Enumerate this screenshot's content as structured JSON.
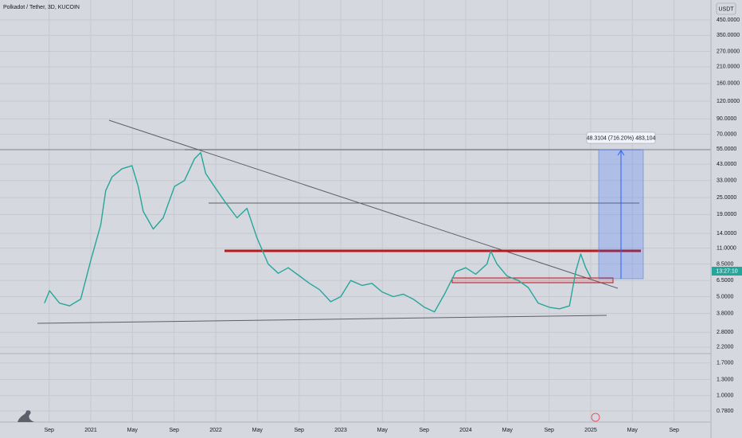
{
  "chart_data": {
    "type": "line",
    "title": "Polkadot / Tether, 3D, KUCOIN",
    "currency": "USDT",
    "countdown": "13:27:10",
    "measure_label": "48.3104 (716.20%) 483,104",
    "log_scale": true,
    "grid": true,
    "color": "#26a69a",
    "xlim": [
      2020.274,
      2025.962
    ],
    "xticks": [
      {
        "value": 2020.667,
        "label": "Sep"
      },
      {
        "value": 2021,
        "label": "2021"
      },
      {
        "value": 2021.333,
        "label": "May"
      },
      {
        "value": 2021.667,
        "label": "Sep"
      },
      {
        "value": 2022,
        "label": "2022"
      },
      {
        "value": 2022.333,
        "label": "May"
      },
      {
        "value": 2022.667,
        "label": "Sep"
      },
      {
        "value": 2023,
        "label": "2023"
      },
      {
        "value": 2023.333,
        "label": "May"
      },
      {
        "value": 2023.667,
        "label": "Sep"
      },
      {
        "value": 2024,
        "label": "2024"
      },
      {
        "value": 2024.333,
        "label": "May"
      },
      {
        "value": 2024.667,
        "label": "Sep"
      },
      {
        "value": 2025,
        "label": "2025"
      },
      {
        "value": 2025.333,
        "label": "May"
      },
      {
        "value": 2025.667,
        "label": "Sep"
      }
    ],
    "ylim": [
      0.65,
      622
    ],
    "yticks": [
      {
        "value": 450,
        "label": "450.0000"
      },
      {
        "value": 350,
        "label": "350.0000"
      },
      {
        "value": 270,
        "label": "270.0000"
      },
      {
        "value": 210,
        "label": "210.0000"
      },
      {
        "value": 160,
        "label": "160.0000"
      },
      {
        "value": 120,
        "label": "120.0000"
      },
      {
        "value": 90,
        "label": "90.0000"
      },
      {
        "value": 70,
        "label": "70.0000"
      },
      {
        "value": 55,
        "label": "55.0000"
      },
      {
        "value": 43,
        "label": "43.0000"
      },
      {
        "value": 33,
        "label": "33.0000"
      },
      {
        "value": 25,
        "label": "25.0000"
      },
      {
        "value": 19,
        "label": "19.0000"
      },
      {
        "value": 14,
        "label": "14.0000"
      },
      {
        "value": 11,
        "label": "11.0000"
      },
      {
        "value": 8.5,
        "label": "8.5000"
      },
      {
        "value": 6.5,
        "label": "6.5000"
      },
      {
        "value": 5,
        "label": "5.0000"
      },
      {
        "value": 3.8,
        "label": "3.8000"
      },
      {
        "value": 2.8,
        "label": "2.8000"
      },
      {
        "value": 2.2,
        "label": "2.2000"
      },
      {
        "value": 1.7,
        "label": "1.7000"
      },
      {
        "value": 1.3,
        "label": "1.3000"
      },
      {
        "value": 1,
        "label": "1.0000"
      },
      {
        "value": 0.78,
        "label": "0.7800"
      }
    ],
    "x": [
      2020.63,
      2020.67,
      2020.75,
      2020.83,
      2020.92,
      2021.0,
      2021.08,
      2021.12,
      2021.17,
      2021.25,
      2021.33,
      2021.38,
      2021.42,
      2021.5,
      2021.58,
      2021.67,
      2021.75,
      2021.83,
      2021.88,
      2021.92,
      2022.0,
      2022.08,
      2022.17,
      2022.25,
      2022.33,
      2022.42,
      2022.5,
      2022.58,
      2022.67,
      2022.75,
      2022.83,
      2022.92,
      2023.0,
      2023.08,
      2023.17,
      2023.25,
      2023.33,
      2023.42,
      2023.5,
      2023.58,
      2023.67,
      2023.75,
      2023.83,
      2023.92,
      2024.0,
      2024.08,
      2024.17,
      2024.2,
      2024.25,
      2024.33,
      2024.42,
      2024.5,
      2024.58,
      2024.67,
      2024.75,
      2024.83,
      2024.88,
      2024.92,
      2024.96,
      2025.0
    ],
    "values": [
      4.5,
      5.5,
      4.5,
      4.3,
      4.8,
      9,
      16,
      28,
      35,
      40,
      42,
      30,
      20,
      15,
      18,
      30,
      33,
      47,
      52,
      37,
      29,
      23,
      18,
      21,
      13,
      8.5,
      7.3,
      8.0,
      7.0,
      6.2,
      5.6,
      4.6,
      5.0,
      6.5,
      6.0,
      6.2,
      5.4,
      5.0,
      5.2,
      4.8,
      4.2,
      3.9,
      5.2,
      7.5,
      8.0,
      7.2,
      8.5,
      10.5,
      8.5,
      7.0,
      6.5,
      5.8,
      4.5,
      4.2,
      4.1,
      4.3,
      7.5,
      10,
      8.0,
      6.8
    ]
  }
}
